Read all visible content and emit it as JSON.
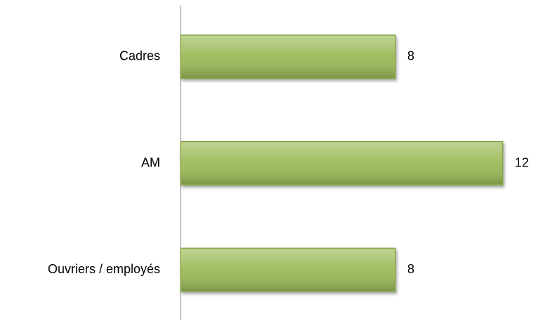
{
  "chart_data": {
    "type": "bar",
    "orientation": "horizontal",
    "categories": [
      "Cadres",
      "AM",
      "Ouvriers / employés"
    ],
    "values": [
      8,
      12,
      8
    ],
    "color": "#9bbb59",
    "xlim": [
      0,
      13
    ]
  }
}
